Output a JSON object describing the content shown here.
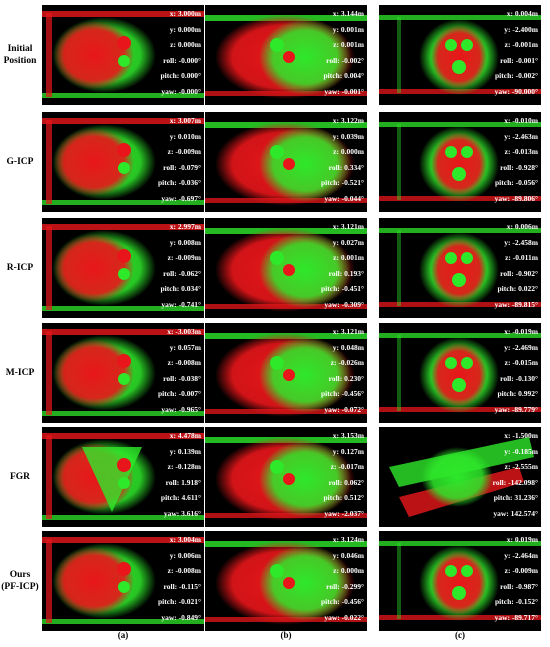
{
  "rows": [
    {
      "label": [
        "Initial",
        "Position"
      ],
      "cells": [
        {
          "scene": "a",
          "x": "x: 3.000m",
          "y": "y: 0.000m",
          "z": "z: 0.000m",
          "roll": "roll: -0.000°",
          "pitch": "pitch: 0.000°",
          "yaw": "yaw: -0.000°"
        },
        {
          "scene": "b",
          "x": "x: 3.144m",
          "y": "y: 0.001m",
          "z": "z: 0.001m",
          "roll": "roll: -0.002°",
          "pitch": "pitch: 0.004°",
          "yaw": "yaw: -0.001°"
        },
        {
          "scene": "c",
          "x": "x: 0.004m",
          "y": "y: -2.400m",
          "z": "z: -0.001m",
          "roll": "roll: -0.001°",
          "pitch": "pitch: -0.002°",
          "yaw": "yaw: -90.000°"
        }
      ]
    },
    {
      "label": [
        "G-ICP"
      ],
      "cells": [
        {
          "scene": "a",
          "x": "x: 3.007m",
          "y": "y: 0.010m",
          "z": "z: -0.009m",
          "roll": "roll: -0.079°",
          "pitch": "pitch: -0.036°",
          "yaw": "yaw: -0.697°"
        },
        {
          "scene": "b",
          "x": "x: 3.122m",
          "y": "y: 0.039m",
          "z": "z: 0.000m",
          "roll": "roll: 0.334°",
          "pitch": "pitch: -0.521°",
          "yaw": "yaw: -0.044°"
        },
        {
          "scene": "c",
          "x": "x: -0.010m",
          "y": "y: -2.463m",
          "z": "z: -0.013m",
          "roll": "roll: -0.928°",
          "pitch": "pitch: -0.056°",
          "yaw": "yaw: -89.806°"
        }
      ]
    },
    {
      "label": [
        "R-ICP"
      ],
      "cells": [
        {
          "scene": "a",
          "x": "x: 2.997m",
          "y": "y: 0.008m",
          "z": "z: -0.009m",
          "roll": "roll: -0.062°",
          "pitch": "pitch: 0.034°",
          "yaw": "yaw: -0.741°"
        },
        {
          "scene": "b",
          "x": "x: 3.121m",
          "y": "y: 0.027m",
          "z": "z: 0.001m",
          "roll": "roll: 0.193°",
          "pitch": "pitch: -0.451°",
          "yaw": "yaw: -0.309°"
        },
        {
          "scene": "c",
          "x": "x: 0.006m",
          "y": "y: -2.458m",
          "z": "z: -0.011m",
          "roll": "roll: -0.902°",
          "pitch": "pitch: 0.022°",
          "yaw": "yaw: -89.815°"
        }
      ]
    },
    {
      "label": [
        "M-ICP"
      ],
      "cells": [
        {
          "scene": "a",
          "x": "x: -3.003m",
          "y": "y: 0.057m",
          "z": "z: -0.008m",
          "roll": "roll: -0.038°",
          "pitch": "pitch: -0.007°",
          "yaw": "yaw: -0.965°"
        },
        {
          "scene": "b",
          "x": "x: 3.121m",
          "y": "y: 0.048m",
          "z": "z: -0.026m",
          "roll": "roll: 0.230°",
          "pitch": "pitch: -0.456°",
          "yaw": "yaw: -0.072°"
        },
        {
          "scene": "c",
          "x": "x: -0.019m",
          "y": "y: -2.469m",
          "z": "z: -0.015m",
          "roll": "roll: -0.130°",
          "pitch": "pitch: 0.992°",
          "yaw": "yaw: -89.779°"
        }
      ]
    },
    {
      "label": [
        "FGR"
      ],
      "cells": [
        {
          "scene": "a",
          "x": "x: 4.478m",
          "y": "y: 0.139m",
          "z": "z: -0.128m",
          "roll": "roll: 1.918°",
          "pitch": "pitch: 4.611°",
          "yaw": "yaw: 3.616°"
        },
        {
          "scene": "b",
          "x": "x: 3.153m",
          "y": "y: 0.127m",
          "z": "z: -0.017m",
          "roll": "roll: 0.062°",
          "pitch": "pitch: 0.512°",
          "yaw": "yaw: -2.037°"
        },
        {
          "scene": "c",
          "x": "x: -1.500m",
          "y": "y: -0.185m",
          "z": "z: -2.555m",
          "roll": "roll: -142.098°",
          "pitch": "pitch: 31.236°",
          "yaw": "yaw: 142.574°"
        }
      ]
    },
    {
      "label": [
        "Ours",
        "(PF-ICP)"
      ],
      "cells": [
        {
          "scene": "a",
          "x": "x: 3.004m",
          "y": "y: 0.006m",
          "z": "z: -0.008m",
          "roll": "roll: -0.115°",
          "pitch": "pitch: -0.021°",
          "yaw": "yaw: -0.849°"
        },
        {
          "scene": "b",
          "x": "x: 3.124m",
          "y": "y: 0.046m",
          "z": "z: 0.000m",
          "roll": "roll: -0.299°",
          "pitch": "pitch: -0.456°",
          "yaw": "yaw: -0.022°"
        },
        {
          "scene": "c",
          "x": "x: 0.019m",
          "y": "y: -2.464m",
          "z": "z: -0.009m",
          "roll": "roll: -0.987°",
          "pitch": "pitch: -0.152°",
          "yaw": "yaw: -89.717°"
        }
      ]
    }
  ],
  "columns": [
    "(a)",
    "(b)",
    "(c)"
  ],
  "colors": {
    "source": "#e8161a",
    "target": "#2ee82a",
    "background": "#000000",
    "text": "#ffffff"
  }
}
